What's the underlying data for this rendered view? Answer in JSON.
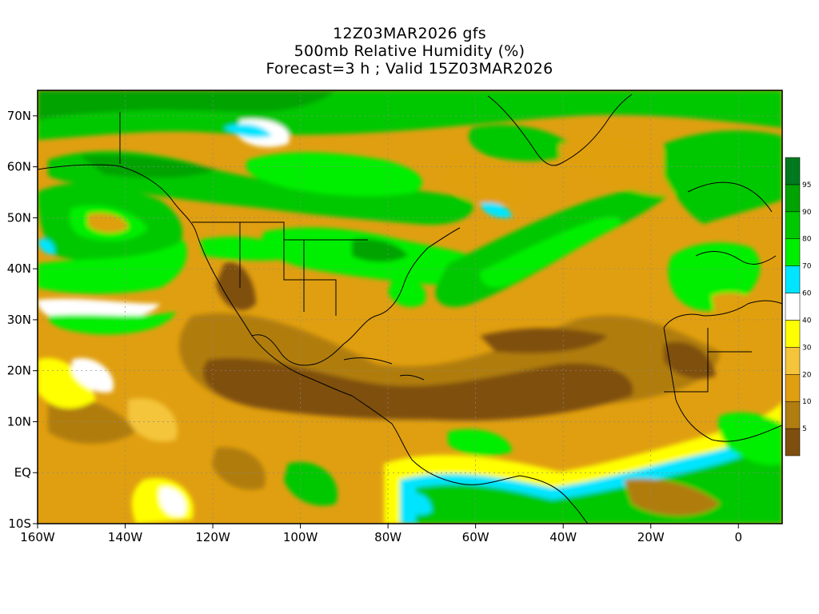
{
  "title": {
    "line1": "12Z03MAR2026 gfs",
    "line2": "500mb Relative Humidity (%)",
    "line3": "Forecast=3 h ; Valid 15Z03MAR2026"
  },
  "axes": {
    "x_ticks": [
      {
        "lon": -160,
        "label": "160W"
      },
      {
        "lon": -140,
        "label": "140W"
      },
      {
        "lon": -120,
        "label": "120W"
      },
      {
        "lon": -100,
        "label": "100W"
      },
      {
        "lon": -80,
        "label": "80W"
      },
      {
        "lon": -60,
        "label": "60W"
      },
      {
        "lon": -40,
        "label": "40W"
      },
      {
        "lon": -20,
        "label": "20W"
      },
      {
        "lon": 0,
        "label": "0"
      }
    ],
    "y_ticks": [
      {
        "lat": 70,
        "label": "70N"
      },
      {
        "lat": 60,
        "label": "60N"
      },
      {
        "lat": 50,
        "label": "50N"
      },
      {
        "lat": 40,
        "label": "40N"
      },
      {
        "lat": 30,
        "label": "30N"
      },
      {
        "lat": 20,
        "label": "20N"
      },
      {
        "lat": 10,
        "label": "10N"
      },
      {
        "lat": 0,
        "label": "EQ"
      },
      {
        "lat": -10,
        "label": "10S"
      }
    ],
    "lon_range": [
      -160,
      10
    ],
    "lat_range": [
      -10,
      75
    ]
  },
  "colorbar": {
    "levels": [
      {
        "color": "#7f4f0f",
        "label": "5"
      },
      {
        "color": "#b07d10",
        "label": "10"
      },
      {
        "color": "#e09f10",
        "label": "20"
      },
      {
        "color": "#f4c43a",
        "label": "30"
      },
      {
        "color": "#ffff00",
        "label": "40"
      },
      {
        "color": "#ffffff",
        "label": "60"
      },
      {
        "color": "#00e5ff",
        "label": "70"
      },
      {
        "color": "#00ef00",
        "label": "80"
      },
      {
        "color": "#00c800",
        "label": "90"
      },
      {
        "color": "#00a300",
        "label": "95"
      },
      {
        "color": "#007a1e",
        "label": ""
      }
    ]
  },
  "colors": {
    "very_dry": "#7f4f0f",
    "dry": "#b07d10",
    "moderately_dry": "#e09f10",
    "light_dry": "#f4c43a",
    "yellow": "#ffff00",
    "white": "#ffffff",
    "cyan": "#00e5ff",
    "light_green": "#00ef00",
    "green": "#00c800",
    "dark_green": "#00a300",
    "darkest_green": "#007a1e"
  }
}
